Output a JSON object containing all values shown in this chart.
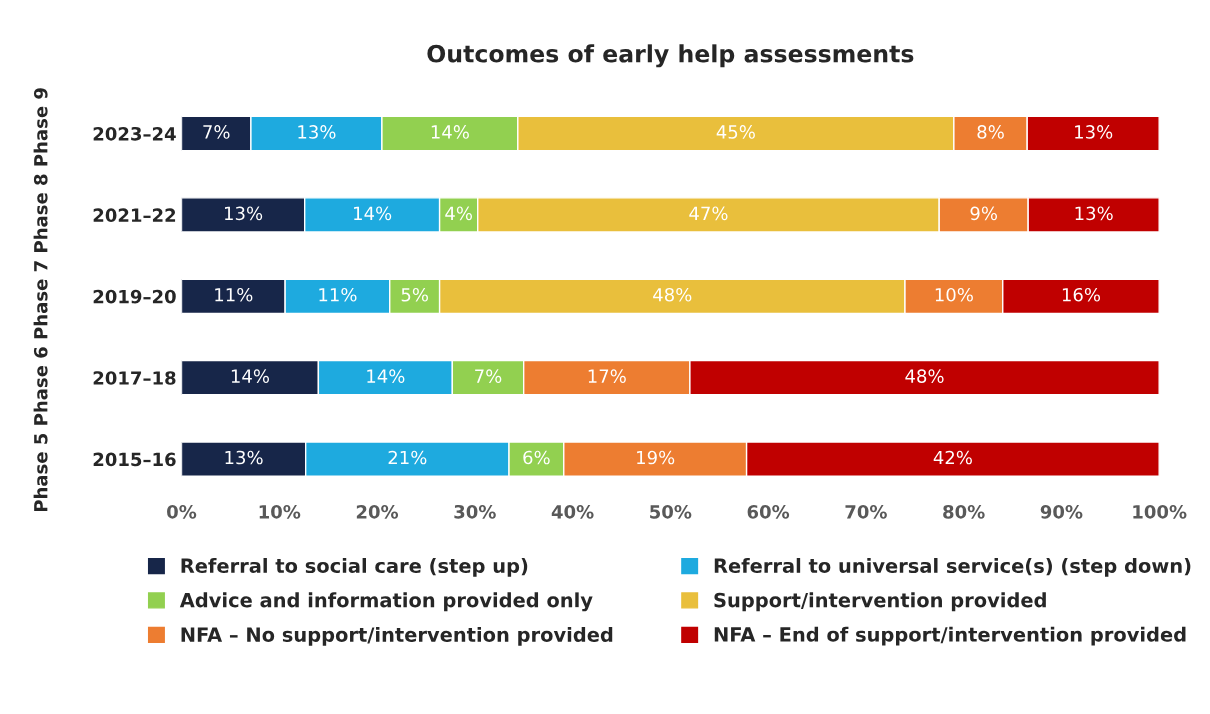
{
  "chart_data": {
    "type": "bar",
    "orientation": "horizontal",
    "stacked": true,
    "title": "Outcomes of early help assessments",
    "ylabel": "Phase 5 Phase 6 Phase 7 Phase 8 Phase 9",
    "categories": [
      "2023–24",
      "2021–22",
      "2019–20",
      "2017–18",
      "2015–16"
    ],
    "series": [
      {
        "name": "Referral to social care (step up)",
        "color": "#172649",
        "values": [
          7.1,
          12.6,
          10.6,
          14.0,
          12.7
        ],
        "value_labels": [
          "7%",
          "13%",
          "11%",
          "14%",
          "13%"
        ]
      },
      {
        "name": "Referral to universal service(s) (step down)",
        "color": "#1eaadf",
        "values": [
          13.4,
          13.8,
          10.7,
          13.7,
          20.8
        ],
        "value_labels": [
          "13%",
          "14%",
          "11%",
          "14%",
          "21%"
        ]
      },
      {
        "name": "Advice and information provided only",
        "color": "#92d050",
        "values": [
          13.9,
          3.9,
          5.1,
          7.3,
          5.6
        ],
        "value_labels": [
          "14%",
          "4%",
          "5%",
          "7%",
          "6%"
        ]
      },
      {
        "name": "Support/intervention provided",
        "color": "#e9bf3c",
        "values": [
          44.6,
          47.2,
          47.6,
          null,
          null
        ],
        "value_labels": [
          "45%",
          "47%",
          "48%",
          null,
          null
        ]
      },
      {
        "name": "NFA – No support/intervention provided",
        "color": "#ed7d31",
        "values": [
          7.5,
          9.1,
          10.0,
          17.0,
          18.7
        ],
        "value_labels": [
          "8%",
          "9%",
          "10%",
          "17%",
          "19%"
        ]
      },
      {
        "name": "NFA – End of support/intervention provided",
        "color": "#c00000",
        "values": [
          13.5,
          13.4,
          16.0,
          48.0,
          42.2
        ],
        "value_labels": [
          "13%",
          "13%",
          "16%",
          "48%",
          "42%"
        ]
      }
    ],
    "xlim": [
      0,
      100
    ],
    "xticks": [
      {
        "value": 0,
        "label": "0%"
      },
      {
        "value": 10,
        "label": "10%"
      },
      {
        "value": 20,
        "label": "20%"
      },
      {
        "value": 30,
        "label": "30%"
      },
      {
        "value": 40,
        "label": "40%"
      },
      {
        "value": 50,
        "label": "50%"
      },
      {
        "value": 60,
        "label": "60%"
      },
      {
        "value": 70,
        "label": "70%"
      },
      {
        "value": 80,
        "label": "80%"
      },
      {
        "value": 90,
        "label": "90%"
      },
      {
        "value": 100,
        "label": "100%"
      }
    ],
    "legend": "bottom",
    "grid": false
  }
}
